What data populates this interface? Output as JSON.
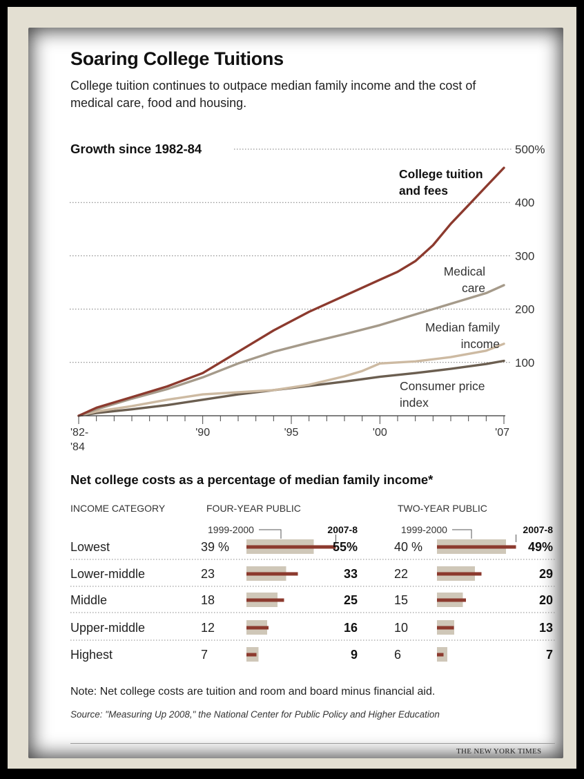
{
  "title": "Soaring College Tuitions",
  "subtitle": "College tuition continues to outpace median family income and the cost of medical care, food and housing.",
  "chart_data": [
    {
      "type": "line",
      "title": "Growth since 1982-84",
      "ylim": [
        0,
        500
      ],
      "xlim": [
        1983,
        2007
      ],
      "y_ticks": [
        {
          "value": 500,
          "label": "500%"
        },
        {
          "value": 400,
          "label": "400"
        },
        {
          "value": 300,
          "label": "300"
        },
        {
          "value": 200,
          "label": "200"
        },
        {
          "value": 100,
          "label": "100"
        }
      ],
      "x_ticks": [
        {
          "value": 1983,
          "label": "'82-",
          "label2": "'84"
        },
        {
          "value": 1990,
          "label": "'90"
        },
        {
          "value": 1995,
          "label": "'95"
        },
        {
          "value": 2000,
          "label": "'00"
        },
        {
          "value": 2007,
          "label": "'07"
        }
      ],
      "series": [
        {
          "name": "College tuition and fees",
          "label_lines": [
            "College tuition",
            "and fees"
          ],
          "color": "#8c3a2e",
          "x": [
            1983,
            1984,
            1986,
            1988,
            1990,
            1992,
            1994,
            1996,
            1998,
            2000,
            2001,
            2002,
            2003,
            2004,
            2005,
            2006,
            2007
          ],
          "y": [
            0,
            15,
            35,
            55,
            80,
            120,
            160,
            195,
            225,
            255,
            270,
            290,
            320,
            360,
            395,
            430,
            465
          ]
        },
        {
          "name": "Medical care",
          "label_lines": [
            "Medical",
            "care"
          ],
          "color": "#a59a8a",
          "x": [
            1983,
            1984,
            1986,
            1988,
            1990,
            1992,
            1994,
            1996,
            1998,
            2000,
            2002,
            2004,
            2006,
            2007
          ],
          "y": [
            0,
            12,
            32,
            50,
            72,
            98,
            120,
            137,
            153,
            170,
            190,
            210,
            230,
            245
          ]
        },
        {
          "name": "Median family income",
          "label_lines": [
            "Median family",
            "income"
          ],
          "color": "#cdbaa2",
          "x": [
            1983,
            1984,
            1986,
            1988,
            1990,
            1992,
            1994,
            1996,
            1998,
            1999,
            2000,
            2002,
            2004,
            2006,
            2007
          ],
          "y": [
            0,
            8,
            18,
            30,
            40,
            44,
            48,
            58,
            74,
            84,
            98,
            102,
            110,
            122,
            135
          ]
        },
        {
          "name": "Consumer price index",
          "label_lines": [
            "Consumer price",
            "index"
          ],
          "color": "#6b5e50",
          "x": [
            1983,
            1984,
            1986,
            1988,
            1990,
            1992,
            1994,
            1996,
            1998,
            2000,
            2002,
            2004,
            2006,
            2007
          ],
          "y": [
            0,
            5,
            12,
            20,
            30,
            40,
            48,
            56,
            64,
            73,
            80,
            88,
            97,
            103
          ]
        }
      ]
    },
    {
      "type": "bar",
      "title": "Net college costs as a percentage of median family income*",
      "xlim": [
        0,
        60
      ],
      "column_headers": {
        "category": "INCOME CATEGORY",
        "four_year": "FOUR-YEAR PUBLIC",
        "two_year": "TWO-YEAR PUBLIC"
      },
      "year_labels": {
        "old": "1999-2000",
        "new": "2007-8"
      },
      "legend_colors": {
        "old": "#cfc7b8",
        "new": "#8c3a2e"
      },
      "categories": [
        "Lowest",
        "Lower-middle",
        "Middle",
        "Upper-middle",
        "Highest"
      ],
      "four_year": {
        "old": [
          39,
          23,
          18,
          12,
          7
        ],
        "new": [
          55,
          33,
          25,
          16,
          9
        ],
        "old_labels": [
          "39 %",
          "23",
          "18",
          "12",
          "7"
        ],
        "new_labels": [
          "55%",
          "33",
          "25",
          "16",
          "9"
        ]
      },
      "two_year": {
        "old": [
          40,
          22,
          15,
          10,
          6
        ],
        "new": [
          49,
          29,
          20,
          13,
          7
        ],
        "old_labels": [
          "40 %",
          "22",
          "15",
          "10",
          "6"
        ],
        "new_labels": [
          "49%",
          "29",
          "20",
          "13",
          "7"
        ]
      }
    }
  ],
  "note": "Note: Net college costs are tuition and room and board minus financial aid.",
  "source": "Source: \"Measuring Up 2008,\" the National Center for Public Policy and Higher Education",
  "credit": "THE NEW YORK TIMES"
}
